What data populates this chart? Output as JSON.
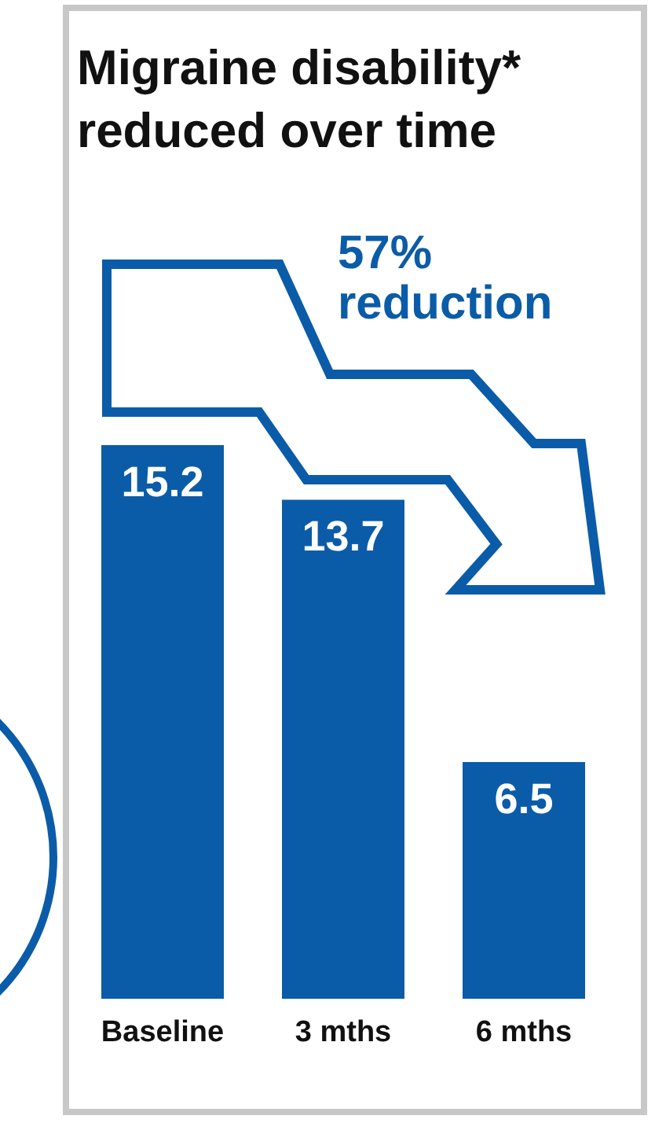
{
  "chart_data": {
    "type": "bar",
    "title": "Migraine disability* reduced over time",
    "categories": [
      "Baseline",
      "3 mths",
      "6 mths"
    ],
    "values": [
      15.2,
      13.7,
      6.5
    ],
    "color": "#0b5ca8",
    "data_labels": true,
    "annotations": [
      "57% reduction"
    ]
  }
}
